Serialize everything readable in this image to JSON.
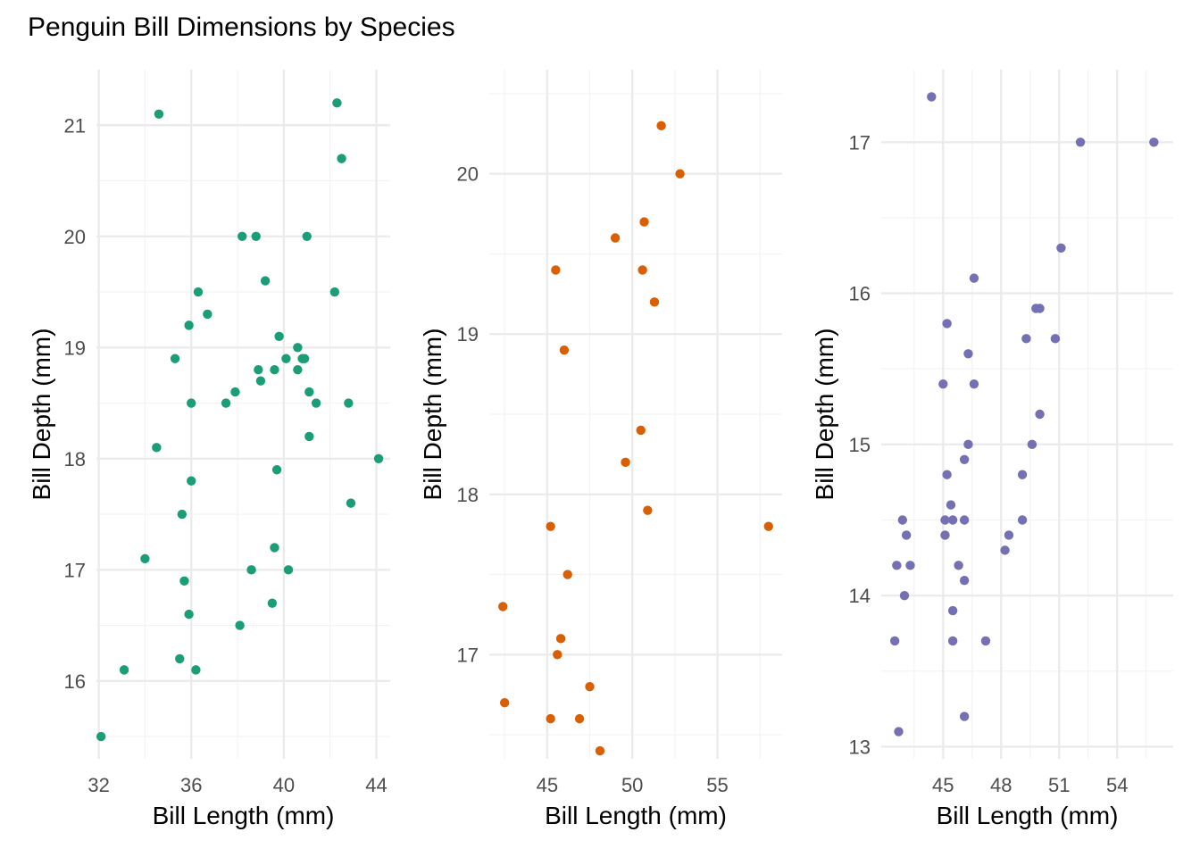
{
  "title": "Penguin Bill Dimensions by Species",
  "colors": {
    "grid_major": "#ebebeb",
    "grid_minor": "#f3f3f3"
  },
  "chart_data": [
    {
      "type": "scatter",
      "xlabel": "Bill Length (mm)",
      "ylabel": "Bill Depth (mm)",
      "color": "#1b9e77",
      "xlim": [
        31.9,
        44.6
      ],
      "ylim": [
        15.3,
        21.5
      ],
      "xticks": [
        32,
        36,
        40,
        44
      ],
      "yticks": [
        16,
        17,
        18,
        19,
        20,
        21
      ],
      "points": [
        [
          34.6,
          21.1
        ],
        [
          42.3,
          21.2
        ],
        [
          42.5,
          20.7
        ],
        [
          38.2,
          20.0
        ],
        [
          38.8,
          20.0
        ],
        [
          41.0,
          20.0
        ],
        [
          39.2,
          19.6
        ],
        [
          36.3,
          19.5
        ],
        [
          42.2,
          19.5
        ],
        [
          36.7,
          19.3
        ],
        [
          35.9,
          19.2
        ],
        [
          39.8,
          19.1
        ],
        [
          40.6,
          19.0
        ],
        [
          35.3,
          18.9
        ],
        [
          40.1,
          18.9
        ],
        [
          40.8,
          18.9
        ],
        [
          40.9,
          18.9
        ],
        [
          38.9,
          18.8
        ],
        [
          39.6,
          18.8
        ],
        [
          40.6,
          18.8
        ],
        [
          39.0,
          18.7
        ],
        [
          37.9,
          18.6
        ],
        [
          41.1,
          18.6
        ],
        [
          36.0,
          18.5
        ],
        [
          37.5,
          18.5
        ],
        [
          41.4,
          18.5
        ],
        [
          42.8,
          18.5
        ],
        [
          41.1,
          18.2
        ],
        [
          34.5,
          18.1
        ],
        [
          44.1,
          18.0
        ],
        [
          39.7,
          17.9
        ],
        [
          36.0,
          17.8
        ],
        [
          42.9,
          17.6
        ],
        [
          35.6,
          17.5
        ],
        [
          39.6,
          17.2
        ],
        [
          34.0,
          17.1
        ],
        [
          38.6,
          17.0
        ],
        [
          40.2,
          17.0
        ],
        [
          35.7,
          16.9
        ],
        [
          39.5,
          16.7
        ],
        [
          35.9,
          16.6
        ],
        [
          38.1,
          16.5
        ],
        [
          35.5,
          16.2
        ],
        [
          33.1,
          16.1
        ],
        [
          36.2,
          16.1
        ],
        [
          32.1,
          15.5
        ]
      ]
    },
    {
      "type": "scatter",
      "xlabel": "Bill Length (mm)",
      "ylabel": "Bill Depth (mm)",
      "color": "#d95f02",
      "xlim": [
        41.6,
        58.8
      ],
      "ylim": [
        16.35,
        20.65
      ],
      "xticks": [
        45,
        50,
        55
      ],
      "yticks": [
        17,
        18,
        19,
        20
      ],
      "points": [
        [
          51.7,
          20.3
        ],
        [
          52.8,
          20.0
        ],
        [
          50.7,
          19.7
        ],
        [
          49.0,
          19.6
        ],
        [
          45.5,
          19.4
        ],
        [
          50.6,
          19.4
        ],
        [
          51.3,
          19.2
        ],
        [
          46.0,
          18.9
        ],
        [
          50.5,
          18.4
        ],
        [
          49.6,
          18.2
        ],
        [
          50.9,
          17.9
        ],
        [
          45.2,
          17.8
        ],
        [
          58.0,
          17.8
        ],
        [
          46.2,
          17.5
        ],
        [
          42.4,
          17.3
        ],
        [
          45.8,
          17.1
        ],
        [
          45.6,
          17.0
        ],
        [
          47.5,
          16.8
        ],
        [
          42.5,
          16.7
        ],
        [
          45.2,
          16.6
        ],
        [
          46.9,
          16.6
        ],
        [
          48.1,
          16.4
        ]
      ]
    },
    {
      "type": "scatter",
      "xlabel": "Bill Length (mm)",
      "ylabel": "Bill Depth (mm)",
      "color": "#7570b3",
      "xlim": [
        41.8,
        56.9
      ],
      "ylim": [
        12.92,
        17.48
      ],
      "xticks": [
        45,
        48,
        51,
        54
      ],
      "yticks": [
        13,
        14,
        15,
        16,
        17
      ],
      "points": [
        [
          44.4,
          17.3
        ],
        [
          52.1,
          17.0
        ],
        [
          55.9,
          17.0
        ],
        [
          51.1,
          16.3
        ],
        [
          46.6,
          16.1
        ],
        [
          49.8,
          15.9
        ],
        [
          50.0,
          15.9
        ],
        [
          45.2,
          15.8
        ],
        [
          49.3,
          15.7
        ],
        [
          50.8,
          15.7
        ],
        [
          46.3,
          15.6
        ],
        [
          45.0,
          15.4
        ],
        [
          46.6,
          15.4
        ],
        [
          50.0,
          15.2
        ],
        [
          46.3,
          15.0
        ],
        [
          49.6,
          15.0
        ],
        [
          46.1,
          14.9
        ],
        [
          45.2,
          14.8
        ],
        [
          49.1,
          14.8
        ],
        [
          45.4,
          14.6
        ],
        [
          42.9,
          14.5
        ],
        [
          45.1,
          14.5
        ],
        [
          45.5,
          14.5
        ],
        [
          46.1,
          14.5
        ],
        [
          49.1,
          14.5
        ],
        [
          43.1,
          14.4
        ],
        [
          45.1,
          14.4
        ],
        [
          48.4,
          14.4
        ],
        [
          48.2,
          14.3
        ],
        [
          42.6,
          14.2
        ],
        [
          43.3,
          14.2
        ],
        [
          45.8,
          14.2
        ],
        [
          46.1,
          14.1
        ],
        [
          43.0,
          14.0
        ],
        [
          45.5,
          13.9
        ],
        [
          42.5,
          13.7
        ],
        [
          45.5,
          13.7
        ],
        [
          47.2,
          13.7
        ],
        [
          46.1,
          13.2
        ],
        [
          42.7,
          13.1
        ]
      ]
    }
  ]
}
